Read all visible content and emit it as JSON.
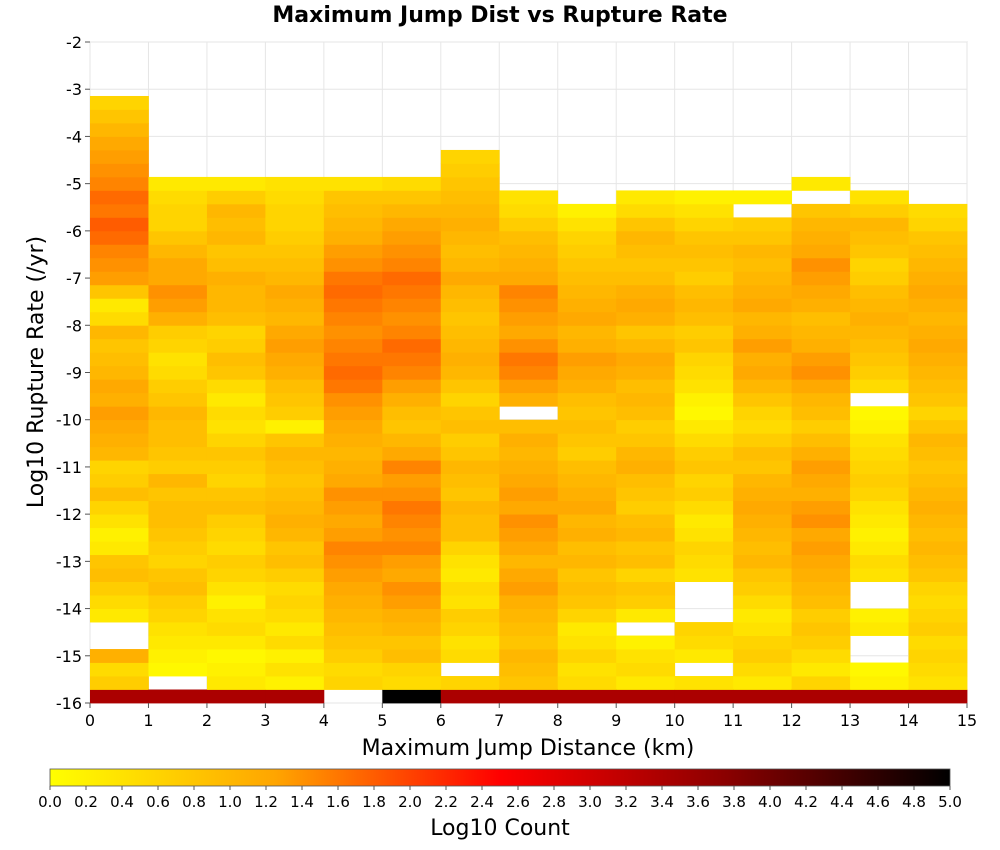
{
  "chart_data": {
    "type": "heatmap",
    "title": "Maximum Jump Dist vs Rupture Rate",
    "xlabel": "Maximum Jump Distance (km)",
    "ylabel": "Log10 Rupture Rate (/yr)",
    "xlim": [
      0,
      15
    ],
    "ylim": [
      -16,
      -2
    ],
    "x_ticks": [
      "0",
      "1",
      "2",
      "3",
      "4",
      "5",
      "6",
      "7",
      "8",
      "9",
      "10",
      "11",
      "12",
      "13",
      "14",
      "15"
    ],
    "y_ticks": [
      "-2",
      "-3",
      "-4",
      "-5",
      "-6",
      "-7",
      "-8",
      "-9",
      "-10",
      "-11",
      "-12",
      "-13",
      "-14",
      "-15",
      "-16"
    ],
    "x_bin_width": 1,
    "y_bin_height": 0.2857,
    "colorbar": {
      "label": "Log10 Count",
      "min": 0.0,
      "max": 5.0,
      "tick_labels": [
        "0.0",
        "0.2",
        "0.4",
        "0.6",
        "0.8",
        "1.0",
        "1.2",
        "1.4",
        "1.6",
        "1.8",
        "2.0",
        "2.2",
        "2.4",
        "2.6",
        "2.8",
        "3.0",
        "3.2",
        "3.4",
        "3.6",
        "3.8",
        "4.0",
        "4.2",
        "4.4",
        "4.6",
        "4.8",
        "5.0"
      ],
      "stops": [
        "#ffff00",
        "#ffa500",
        "#ff0000",
        "#8b0000",
        "#000000"
      ]
    },
    "columns": [
      {
        "x": 0.5,
        "values": [
          3.4,
          0.7,
          0.5,
          1.1,
          null,
          null,
          0.3,
          0.5,
          0.7,
          0.9,
          0.8,
          0.3,
          0.2,
          0.4,
          0.6,
          0.9,
          0.7,
          0.6,
          1.0,
          1.1,
          1.2,
          1.3,
          1.1,
          1.2,
          1.0,
          0.9,
          0.8,
          1.0,
          0.5,
          0.3,
          0.8,
          1.3,
          1.4,
          1.5,
          1.7,
          1.8,
          1.6,
          1.7,
          1.5,
          1.4,
          1.3,
          1.2,
          1.0,
          0.8,
          0.6,
          null,
          null,
          null,
          null,
          null
        ]
      },
      {
        "x": 1.5,
        "values": [
          3.4,
          null,
          0.1,
          0.2,
          0.3,
          0.4,
          0.6,
          0.7,
          0.9,
          0.8,
          0.6,
          0.7,
          0.8,
          0.9,
          0.9,
          0.8,
          1.0,
          0.7,
          0.8,
          0.9,
          0.9,
          1.0,
          0.8,
          0.7,
          0.5,
          0.4,
          0.6,
          0.7,
          1.1,
          1.3,
          1.4,
          1.2,
          1.2,
          1.0,
          0.8,
          0.6,
          0.6,
          0.5,
          0.3,
          null,
          null,
          null,
          null,
          null,
          null,
          null,
          null,
          null,
          null,
          null
        ]
      },
      {
        "x": 2.5,
        "values": [
          3.4,
          0.3,
          0.2,
          0.1,
          0.3,
          0.5,
          0.4,
          0.2,
          0.4,
          0.6,
          0.7,
          0.5,
          0.6,
          0.7,
          0.9,
          0.8,
          0.6,
          0.7,
          0.8,
          0.6,
          0.4,
          0.5,
          0.3,
          0.5,
          0.8,
          0.9,
          0.7,
          0.6,
          0.9,
          1.0,
          1.0,
          1.1,
          0.9,
          0.8,
          1.0,
          0.9,
          1.0,
          0.7,
          0.3,
          null,
          null,
          null,
          null,
          null,
          null,
          null,
          null,
          null,
          null,
          null
        ]
      },
      {
        "x": 3.5,
        "values": [
          3.4,
          0.2,
          0.4,
          0.2,
          0.5,
          0.3,
          0.5,
          0.6,
          0.5,
          0.7,
          0.9,
          0.8,
          1.0,
          1.1,
          1.0,
          0.9,
          0.8,
          0.9,
          1.0,
          0.8,
          0.2,
          0.7,
          0.8,
          0.9,
          1.1,
          1.2,
          1.3,
          1.2,
          1.0,
          1.1,
          1.2,
          1.0,
          0.9,
          0.8,
          0.7,
          0.6,
          0.6,
          0.5,
          0.4,
          null,
          null,
          null,
          null,
          null,
          null,
          null,
          null,
          null,
          null,
          null
        ]
      },
      {
        "x": 4.5,
        "values": [
          null,
          0.6,
          0.5,
          0.7,
          0.8,
          0.9,
          1.0,
          1.1,
          1.2,
          1.3,
          1.4,
          1.5,
          1.3,
          1.2,
          1.3,
          1.4,
          1.2,
          1.1,
          1.0,
          1.1,
          1.2,
          1.3,
          1.4,
          1.6,
          1.7,
          1.6,
          1.5,
          1.4,
          1.5,
          1.6,
          1.7,
          1.6,
          1.4,
          1.3,
          1.1,
          1.0,
          0.9,
          0.8,
          0.4,
          null,
          null,
          null,
          null,
          null,
          null,
          null,
          null,
          null,
          null,
          null
        ]
      },
      {
        "x": 5.5,
        "values": [
          5.0,
          0.5,
          0.6,
          0.9,
          0.8,
          1.0,
          1.1,
          1.3,
          1.4,
          1.2,
          1.3,
          1.5,
          1.4,
          1.5,
          1.6,
          1.4,
          1.3,
          1.5,
          1.2,
          1.0,
          0.8,
          0.9,
          1.1,
          1.3,
          1.5,
          1.6,
          1.7,
          1.5,
          1.4,
          1.5,
          1.6,
          1.7,
          1.5,
          1.4,
          1.3,
          1.2,
          1.0,
          0.8,
          0.5,
          null,
          null,
          null,
          null,
          null,
          null,
          null,
          null,
          null,
          null,
          null
        ]
      },
      {
        "x": 6.5,
        "values": [
          3.4,
          0.6,
          null,
          0.5,
          0.4,
          0.6,
          0.7,
          0.4,
          0.5,
          0.3,
          0.4,
          0.6,
          0.9,
          0.9,
          1.0,
          0.8,
          0.9,
          1.0,
          0.8,
          0.7,
          0.9,
          0.8,
          0.6,
          0.8,
          1.0,
          1.1,
          1.0,
          0.9,
          0.8,
          0.9,
          1.0,
          1.2,
          1.0,
          0.9,
          1.0,
          1.1,
          1.0,
          0.9,
          0.8,
          0.7,
          0.6,
          null,
          null,
          null,
          null,
          null,
          null,
          null,
          null,
          null
        ]
      },
      {
        "x": 7.5,
        "values": [
          3.4,
          0.8,
          0.9,
          1.0,
          0.8,
          0.9,
          1.0,
          1.1,
          1.3,
          1.2,
          1.0,
          1.2,
          1.3,
          1.4,
          1.2,
          1.3,
          1.2,
          1.1,
          1.0,
          1.1,
          0.9,
          null,
          1.1,
          1.3,
          1.5,
          1.6,
          1.4,
          1.2,
          1.3,
          1.4,
          1.5,
          1.2,
          1.1,
          1.0,
          0.9,
          0.7,
          0.5,
          0.4,
          null,
          null,
          null,
          null,
          null,
          null,
          null,
          null,
          null,
          null,
          null,
          null
        ]
      },
      {
        "x": 8.5,
        "values": [
          3.4,
          0.5,
          0.4,
          0.6,
          0.4,
          0.3,
          0.6,
          0.8,
          0.9,
          0.8,
          1.0,
          0.9,
          1.1,
          1.0,
          1.2,
          1.1,
          1.0,
          0.9,
          0.7,
          0.8,
          0.9,
          0.8,
          0.9,
          1.1,
          1.2,
          1.3,
          1.1,
          1.0,
          1.2,
          1.1,
          1.0,
          0.9,
          0.8,
          0.7,
          0.6,
          0.4,
          0.2,
          null,
          null,
          null,
          null,
          null,
          null,
          null,
          null,
          null,
          null,
          null,
          null,
          null
        ]
      },
      {
        "x": 9.5,
        "values": [
          3.4,
          0.3,
          0.5,
          0.4,
          0.2,
          null,
          0.3,
          0.7,
          0.8,
          0.6,
          0.9,
          0.8,
          1.0,
          0.9,
          0.7,
          0.8,
          0.9,
          1.1,
          1.0,
          0.8,
          0.7,
          0.9,
          1.0,
          0.9,
          1.1,
          1.2,
          1.0,
          0.8,
          1.1,
          1.2,
          1.1,
          0.9,
          0.8,
          0.9,
          1.0,
          0.8,
          0.5,
          0.3,
          null,
          null,
          null,
          null,
          null,
          null,
          null,
          null,
          null,
          null,
          null,
          null
        ]
      },
      {
        "x": 10.5,
        "values": [
          3.4,
          0.4,
          null,
          0.3,
          0.5,
          0.6,
          null,
          null,
          null,
          0.4,
          0.5,
          0.6,
          0.4,
          0.3,
          0.5,
          0.7,
          0.6,
          0.8,
          0.7,
          0.5,
          0.3,
          0.1,
          0.2,
          0.4,
          0.5,
          0.6,
          0.8,
          0.7,
          0.9,
          1.0,
          0.9,
          0.7,
          0.8,
          0.9,
          0.8,
          0.6,
          0.4,
          0.2,
          null,
          null,
          null,
          null,
          null,
          null,
          null,
          null,
          null,
          null,
          null,
          null
        ]
      },
      {
        "x": 11.5,
        "values": [
          3.4,
          0.3,
          0.5,
          0.7,
          0.6,
          0.4,
          0.3,
          0.5,
          0.7,
          0.8,
          1.0,
          0.9,
          1.0,
          1.1,
          1.2,
          1.1,
          1.0,
          0.8,
          0.9,
          0.7,
          0.5,
          0.6,
          0.8,
          1.0,
          1.2,
          1.1,
          1.3,
          1.1,
          1.0,
          1.2,
          1.1,
          1.0,
          0.9,
          1.0,
          0.8,
          0.7,
          null,
          0.2,
          null,
          null,
          null,
          null,
          null,
          null,
          null,
          null,
          null,
          null,
          null,
          null
        ]
      },
      {
        "x": 12.5,
        "values": [
          3.4,
          0.6,
          0.3,
          0.5,
          0.7,
          0.8,
          0.7,
          0.9,
          1.0,
          1.1,
          1.2,
          1.3,
          1.2,
          1.4,
          1.3,
          1.1,
          1.2,
          1.3,
          1.1,
          0.9,
          0.7,
          0.9,
          1.0,
          1.2,
          1.4,
          1.3,
          1.1,
          1.0,
          0.9,
          1.1,
          1.2,
          1.3,
          1.4,
          1.2,
          1.1,
          1.0,
          0.8,
          null,
          0.3,
          null,
          null,
          null,
          null,
          null,
          null,
          null,
          null,
          null,
          null,
          null
        ]
      },
      {
        "x": 13.5,
        "values": [
          3.4,
          0.2,
          0.1,
          null,
          null,
          0.3,
          0.2,
          null,
          null,
          0.4,
          0.5,
          0.3,
          0.2,
          0.3,
          0.4,
          0.6,
          0.7,
          0.6,
          0.5,
          0.4,
          0.2,
          0.1,
          null,
          0.5,
          0.7,
          0.8,
          0.9,
          1.0,
          1.1,
          1.0,
          0.9,
          0.7,
          0.6,
          0.8,
          0.9,
          1.0,
          0.7,
          0.4,
          null,
          null,
          null,
          null,
          null,
          null,
          null,
          null,
          null,
          null,
          null,
          null
        ]
      },
      {
        "x": 14.5,
        "values": [
          3.4,
          0.4,
          0.5,
          0.6,
          0.5,
          0.7,
          0.6,
          0.5,
          0.6,
          0.8,
          0.9,
          1.0,
          0.9,
          1.0,
          1.1,
          1.0,
          0.9,
          0.8,
          0.9,
          1.0,
          0.8,
          0.6,
          0.8,
          0.9,
          1.0,
          1.1,
          1.2,
          1.1,
          1.0,
          1.1,
          1.2,
          1.1,
          1.0,
          0.9,
          0.8,
          0.6,
          0.5,
          null,
          null,
          null,
          null,
          null,
          null,
          null,
          null,
          null,
          null,
          null,
          null,
          null
        ]
      }
    ]
  }
}
